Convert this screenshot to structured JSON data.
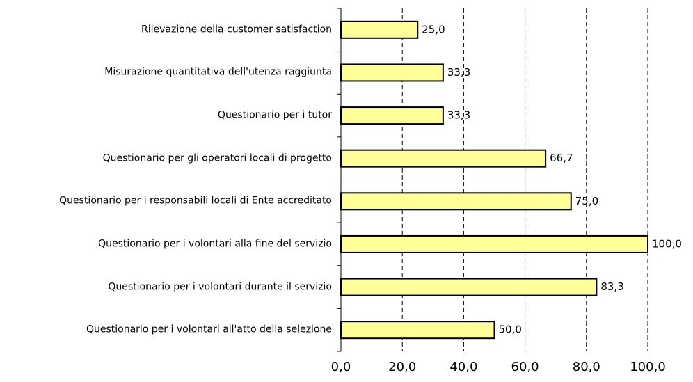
{
  "chart_data": {
    "type": "bar",
    "orientation": "horizontal",
    "categories": [
      "Rilevazione della customer satisfaction",
      "Misurazione quantitativa dell'utenza raggiunta",
      "Questionario per i tutor",
      "Questionario per gli operatori locali di progetto",
      "Questionario per i responsabili locali di Ente accreditato",
      "Questionario per i volontari alla fine del servizio",
      "Questionario per i volontari durante il servizio",
      "Questionario per i volontari all'atto della selezione"
    ],
    "values": [
      25.0,
      33.3,
      33.3,
      66.7,
      75.0,
      100.0,
      83.3,
      50.0
    ],
    "value_labels": [
      "25,0",
      "33,3",
      "33,3",
      "66,7",
      "75,0",
      "100,0",
      "83,3",
      "50,0"
    ],
    "color": "#ffff99",
    "xlim": [
      0,
      100
    ],
    "xticks": [
      {
        "value": 0,
        "label": "0,0"
      },
      {
        "value": 20,
        "label": "20,0"
      },
      {
        "value": 40,
        "label": "40,0"
      },
      {
        "value": 60,
        "label": "60,0"
      },
      {
        "value": 80,
        "label": "80,0"
      },
      {
        "value": 100,
        "label": "100,0"
      }
    ],
    "grid": true
  }
}
